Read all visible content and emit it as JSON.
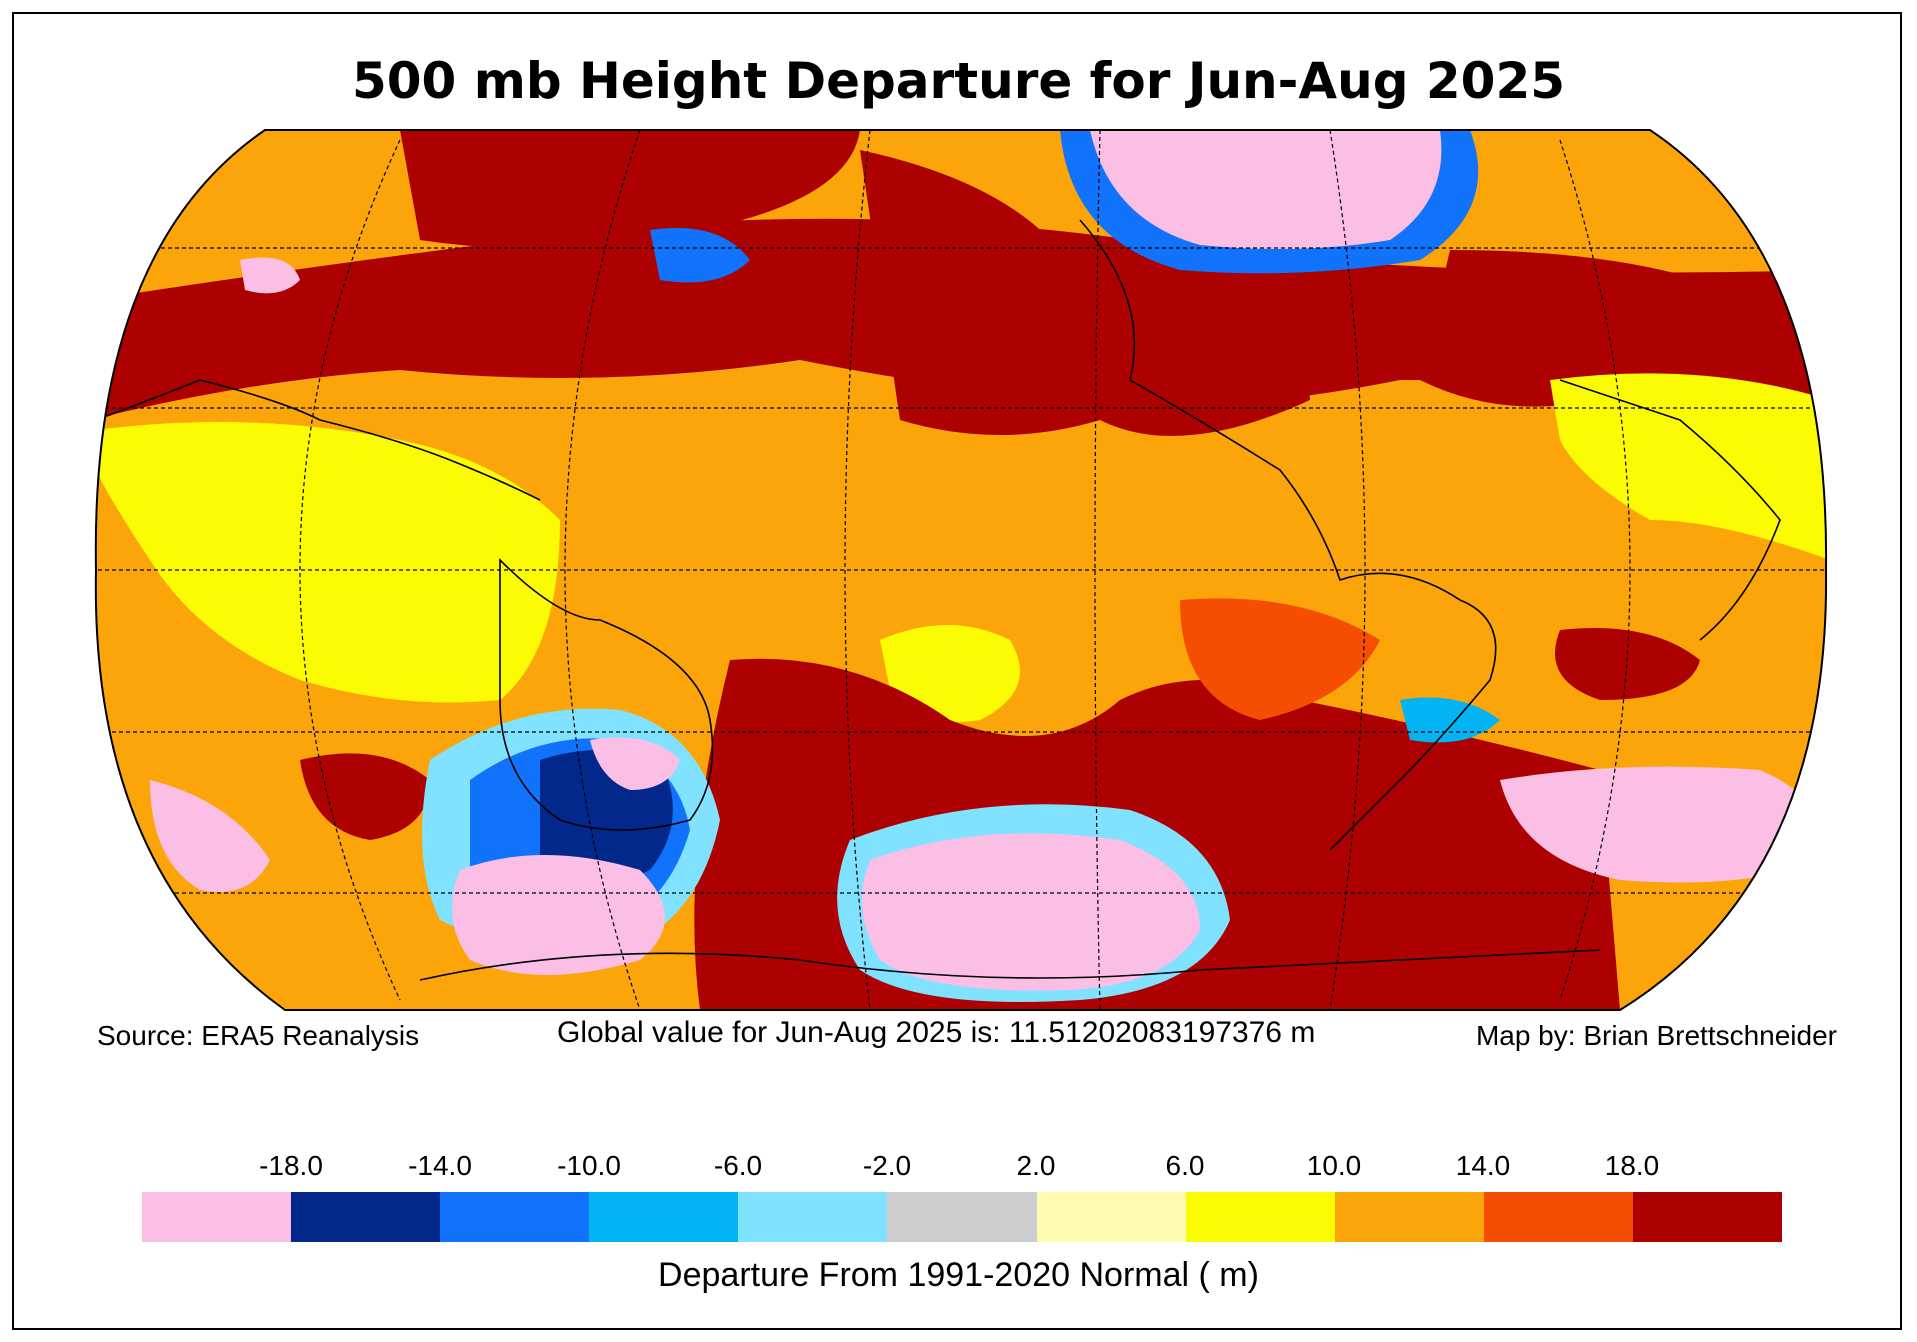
{
  "title": "500 mb Height Departure for Jun-Aug 2025",
  "footer": {
    "source": "Source: ERA5 Reanalysis",
    "global_value": "Global value for Jun-Aug 2025 is: 11.51202083197376 m",
    "credit": "Map by: Brian Brettschneider"
  },
  "colorbar": {
    "tick_labels": [
      "-18.0",
      "-14.0",
      "-10.0",
      "-6.0",
      "-2.0",
      "2.0",
      "6.0",
      "10.0",
      "14.0",
      "18.0"
    ],
    "colors": [
      "#fbbfe6",
      "#03288c",
      "#1173fb",
      "#02b4f4",
      "#80e2fe",
      "#cdcdcd",
      "#fffcb0",
      "#fbfb03",
      "#fba50a",
      "#f54d02",
      "#ad0000"
    ],
    "label": "Departure From 1991-2020 Normal ( m)"
  },
  "map_colors": {
    "ocean_base": "#fba50a",
    "strong_positive": "#ad0000",
    "moderate_positive": "#f54d02",
    "weak_positive": "#fbfb03",
    "near_normal": "#fffcb0",
    "neutral": "#cdcdcd",
    "weak_negative": "#80e2fe",
    "moderate_negative": "#02b4f4",
    "strong_negative": "#1173fb",
    "very_strong_negative": "#03288c",
    "extreme_negative": "#fbbfe6"
  }
}
